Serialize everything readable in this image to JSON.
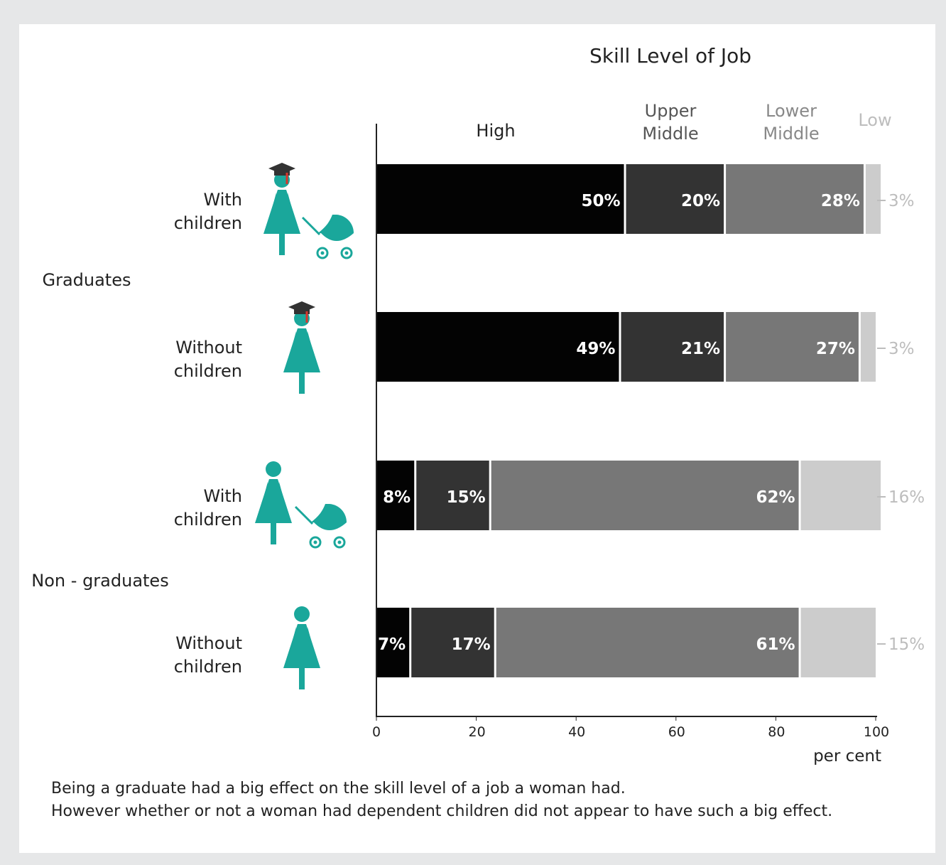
{
  "chart_data": {
    "type": "bar",
    "orientation": "horizontal",
    "stacked": true,
    "title": "Skill Level of Job",
    "xlabel": "per cent",
    "xlim": [
      0,
      100
    ],
    "xticks": [
      0,
      20,
      40,
      60,
      80,
      100
    ],
    "groups": [
      {
        "label": "Graduates",
        "rows": [
          "With children",
          "Without children"
        ]
      },
      {
        "label": "Non - graduates",
        "rows": [
          "With children",
          "Without children"
        ]
      }
    ],
    "categories": [
      "With children",
      "Without children",
      "With children",
      "Without children"
    ],
    "row_label_lines": [
      [
        "With",
        "children"
      ],
      [
        "Without",
        "children"
      ],
      [
        "With",
        "children"
      ],
      [
        "Without",
        "children"
      ]
    ],
    "icons": [
      "graduate-woman-stroller-icon",
      "graduate-woman-icon",
      "woman-stroller-icon",
      "woman-icon"
    ],
    "series": [
      {
        "name": "High",
        "label_lines": [
          "High"
        ],
        "values": [
          50,
          49,
          8,
          7
        ],
        "labels": [
          "50%",
          "49%",
          "8%",
          "7%"
        ],
        "color": "#030303"
      },
      {
        "name": "Upper Middle",
        "label_lines": [
          "Upper",
          "Middle"
        ],
        "values": [
          20,
          21,
          15,
          17
        ],
        "labels": [
          "20%",
          "21%",
          "15%",
          "17%"
        ],
        "color": "#333333"
      },
      {
        "name": "Lower Middle",
        "label_lines": [
          "Lower",
          "Middle"
        ],
        "values": [
          28,
          27,
          62,
          61
        ],
        "labels": [
          "28%",
          "27%",
          "62%",
          "61%"
        ],
        "color": "#777777"
      },
      {
        "name": "Low",
        "label_lines": [
          "Low"
        ],
        "values": [
          3,
          3,
          16,
          15
        ],
        "labels": [
          "3%",
          "3%",
          "16%",
          "15%"
        ],
        "color": "#cccccc"
      }
    ],
    "colors": {
      "icon": "#1aa79b",
      "cap": "#333333",
      "tassel": "#d9342b",
      "axis": "#222222",
      "low_label": "#bdbdbd",
      "header_grey": "#888888"
    }
  },
  "caption": [
    "Being a graduate had a big effect on the skill level of a job a woman had.",
    "However whether or not a woman had dependent children did not appear to have such a big effect."
  ]
}
